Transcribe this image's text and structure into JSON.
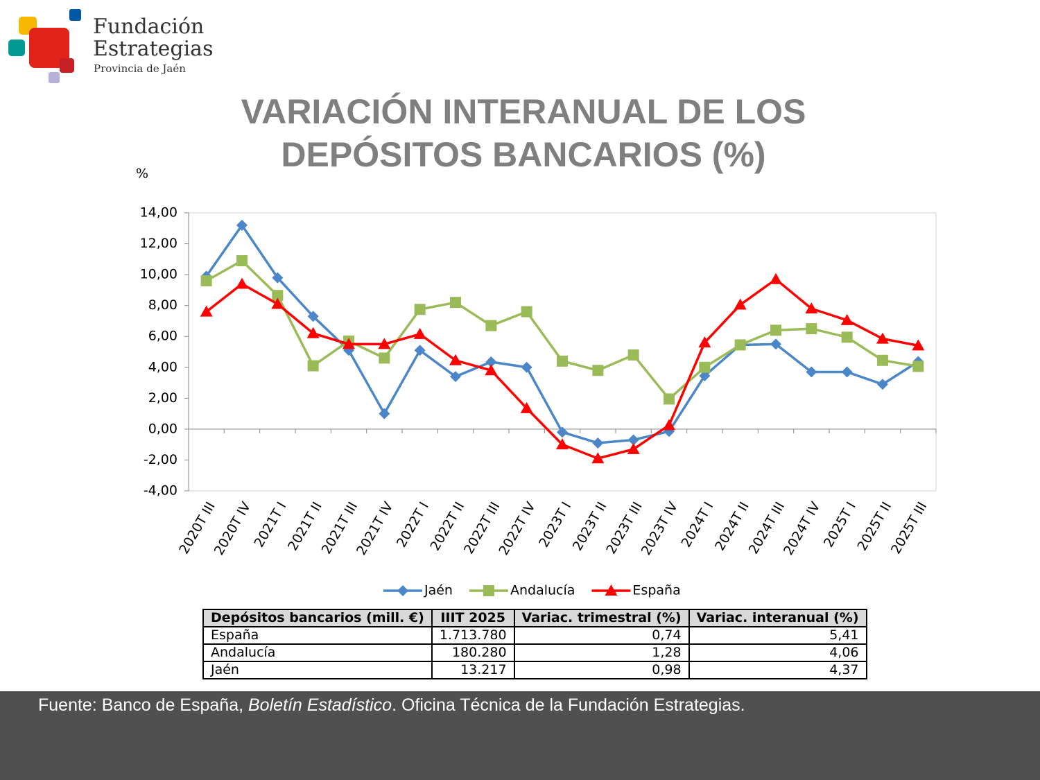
{
  "logo": {
    "name_1": "Fundación",
    "name_2": "Estrategias",
    "subtitle": "Provincia de Jaén"
  },
  "chart_data": {
    "type": "line",
    "title": "VARIACIÓN INTERANUAL DE LOS DEPÓSITOS BANCARIOS (%)",
    "y_label": "%",
    "categories": [
      "2020T III",
      "2020T IV",
      "2021T I",
      "2021T II",
      "2021T III",
      "2021T IV",
      "2022T I",
      "2022T II",
      "2022T III",
      "2022T IV",
      "2023T I",
      "2023T II",
      "2023T III",
      "2023T IV",
      "2024T I",
      "2024T II",
      "2024T III",
      "2024T IV",
      "2025T I",
      "2025T II",
      "2025T III"
    ],
    "series": [
      {
        "name": "Jaén",
        "color": "#4a86c8",
        "marker": "diamond",
        "values": [
          9.9,
          13.2,
          9.8,
          7.3,
          5.1,
          1.0,
          5.1,
          3.4,
          4.35,
          4.0,
          -0.2,
          -0.9,
          -0.7,
          -0.15,
          3.45,
          5.45,
          5.5,
          3.7,
          3.7,
          2.9,
          4.37
        ]
      },
      {
        "name": "Andalucía",
        "color": "#9bbb59",
        "marker": "square",
        "values": [
          9.6,
          10.9,
          8.65,
          4.1,
          5.7,
          4.6,
          7.75,
          8.2,
          6.7,
          7.6,
          4.4,
          3.8,
          4.8,
          1.95,
          4.0,
          5.45,
          6.4,
          6.5,
          5.95,
          4.45,
          4.06
        ]
      },
      {
        "name": "España",
        "color": "#ff0000",
        "marker": "triangle",
        "values": [
          7.6,
          9.4,
          8.1,
          6.2,
          5.5,
          5.5,
          6.15,
          4.45,
          3.8,
          1.35,
          -1.0,
          -1.9,
          -1.3,
          0.25,
          5.6,
          8.05,
          9.7,
          7.8,
          7.05,
          5.85,
          5.41
        ]
      }
    ],
    "ylim": [
      -4,
      14
    ],
    "yticks": [
      {
        "value": -4,
        "label": "-4,00"
      },
      {
        "value": -2,
        "label": "-2,00"
      },
      {
        "value": 0,
        "label": "0,00"
      },
      {
        "value": 2,
        "label": "2,00"
      },
      {
        "value": 4,
        "label": "4,00"
      },
      {
        "value": 6,
        "label": "6,00"
      },
      {
        "value": 8,
        "label": "8,00"
      },
      {
        "value": 10,
        "label": "10,00"
      },
      {
        "value": 12,
        "label": "12,00"
      },
      {
        "value": 14,
        "label": "14,00"
      }
    ],
    "legend": "bottom"
  },
  "table": {
    "header": [
      "Depósitos bancarios (mill. €)",
      "IIIT 2025",
      "Variac. trimestral (%)",
      "Variac. interanual (%)"
    ],
    "rows": [
      [
        "España",
        "1.713.780",
        "0,74",
        "5,41"
      ],
      [
        "Andalucía",
        "180.280",
        "1,28",
        "4,06"
      ],
      [
        "Jaén",
        "13.217",
        "0,98",
        "4,37"
      ]
    ]
  },
  "footer": {
    "text_1": "Fuente: Banco de España, ",
    "text_2": "Boletín Estadístico",
    "text_3": ". Oficina Técnica de la Fundación Estrategias."
  }
}
